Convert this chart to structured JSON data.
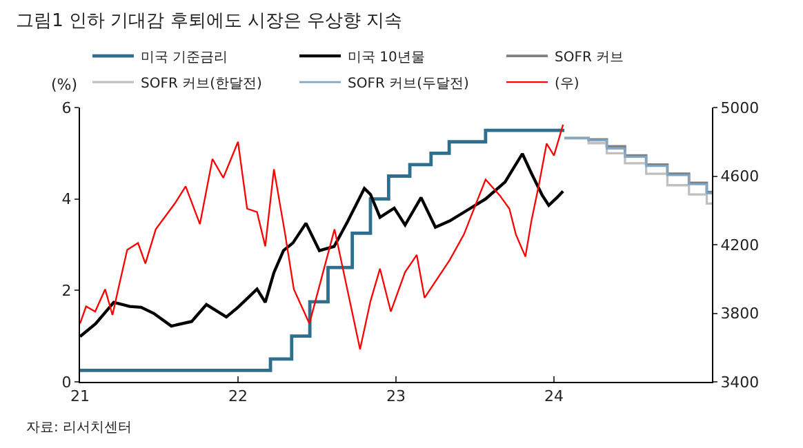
{
  "chart_data": {
    "type": "line",
    "title": "그림1 인하 기대감 후퇴에도 시장은 우상향 지속",
    "ylabel": "(%)",
    "annotations": [
      "자료: 리서치센터"
    ],
    "xlim": [
      "2021-01-01",
      "2024-12-31"
    ],
    "xticks": [
      {
        "value": "2021-01-01",
        "label": "21"
      },
      {
        "value": "2022-01-01",
        "label": "22"
      },
      {
        "value": "2023-01-01",
        "label": "23"
      },
      {
        "value": "2024-01-01",
        "label": "24"
      }
    ],
    "ylim": [
      0,
      6
    ],
    "yticks": [
      0,
      2,
      4,
      6
    ],
    "y2lim": [
      3400,
      5000
    ],
    "y2ticks": [
      3400,
      3800,
      4200,
      4600,
      5000
    ],
    "legend": "top",
    "series": [
      {
        "name": "미국 기준금리",
        "type": "step",
        "color": "#2e6f8e",
        "x": [
          "2021-01-01",
          "2022-03-17",
          "2022-05-05",
          "2022-06-16",
          "2022-07-28",
          "2022-09-22",
          "2022-11-03",
          "2022-12-15",
          "2023-02-02",
          "2023-03-23",
          "2023-05-04",
          "2023-07-27",
          "2024-01-25"
        ],
        "values": [
          0.25,
          0.5,
          1.0,
          1.75,
          2.5,
          3.25,
          4.0,
          4.5,
          4.75,
          5.0,
          5.25,
          5.5,
          5.5
        ]
      },
      {
        "name": "미국 10년물",
        "color": "#000000",
        "x": [
          "2021-01-01",
          "2021-02-06",
          "2021-03-20",
          "2021-04-26",
          "2021-05-22",
          "2021-06-20",
          "2021-07-31",
          "2021-09-16",
          "2021-10-20",
          "2021-12-05",
          "2022-01-01",
          "2022-02-14",
          "2022-03-05",
          "2022-03-25",
          "2022-04-16",
          "2022-05-08",
          "2022-06-07",
          "2022-07-08",
          "2022-08-11",
          "2022-09-12",
          "2022-10-20",
          "2022-11-03",
          "2022-11-25",
          "2022-12-28",
          "2023-01-22",
          "2023-02-28",
          "2023-04-02",
          "2023-05-05",
          "2023-06-14",
          "2023-07-27",
          "2023-09-10",
          "2023-10-20",
          "2023-11-10",
          "2023-12-05",
          "2023-12-20",
          "2024-01-08",
          "2024-01-22"
        ],
        "values": [
          0.99,
          1.27,
          1.74,
          1.65,
          1.63,
          1.5,
          1.22,
          1.32,
          1.69,
          1.42,
          1.63,
          2.03,
          1.74,
          2.39,
          2.87,
          3.04,
          3.47,
          2.87,
          2.96,
          3.52,
          4.23,
          4.1,
          3.6,
          3.8,
          3.43,
          4.03,
          3.38,
          3.52,
          3.75,
          4.0,
          4.37,
          4.99,
          4.56,
          4.08,
          3.86,
          4.03,
          4.17
        ]
      },
      {
        "name": "SOFR 커브",
        "type": "step",
        "color": "#808080",
        "x": [
          "2024-01-25",
          "2024-03-21",
          "2024-05-02",
          "2024-06-13",
          "2024-08-01",
          "2024-09-19",
          "2024-11-08",
          "2024-12-19",
          "2024-12-31"
        ],
        "values": [
          5.33,
          5.3,
          5.15,
          4.95,
          4.75,
          4.55,
          4.35,
          4.15,
          4.15
        ]
      },
      {
        "name": "SOFR 커브(한달전)",
        "type": "step",
        "color": "#c0c0c0",
        "x": [
          "2024-01-25",
          "2024-03-21",
          "2024-05-02",
          "2024-06-13",
          "2024-08-01",
          "2024-09-19",
          "2024-11-08",
          "2024-12-19",
          "2024-12-31"
        ],
        "values": [
          5.33,
          5.22,
          5.0,
          4.78,
          4.55,
          4.3,
          4.1,
          3.9,
          3.9
        ]
      },
      {
        "name": "SOFR 커브(두달전)",
        "type": "step",
        "color": "#7fa7c8",
        "x": [
          "2024-01-25",
          "2024-03-21",
          "2024-05-02",
          "2024-06-13",
          "2024-08-01",
          "2024-09-19",
          "2024-11-08",
          "2024-12-19",
          "2024-12-31"
        ],
        "values": [
          5.33,
          5.28,
          5.1,
          4.92,
          4.72,
          4.52,
          4.32,
          4.12,
          4.12
        ]
      },
      {
        "name": "(우)",
        "axis": "y2",
        "color": "#ff0000",
        "x": [
          "2021-01-01",
          "2021-01-15",
          "2021-02-05",
          "2021-02-28",
          "2021-03-17",
          "2021-04-01",
          "2021-04-20",
          "2021-05-15",
          "2021-06-01",
          "2021-06-25",
          "2021-08-08",
          "2021-09-02",
          "2021-10-05",
          "2021-11-03",
          "2021-11-28",
          "2022-01-01",
          "2022-01-22",
          "2022-02-14",
          "2022-03-05",
          "2022-03-25",
          "2022-04-20",
          "2022-05-10",
          "2022-06-15",
          "2022-08-12",
          "2022-10-10",
          "2022-11-03",
          "2022-11-25",
          "2022-12-20",
          "2023-01-22",
          "2023-02-18",
          "2023-03-08",
          "2023-05-05",
          "2023-06-07",
          "2023-07-05",
          "2023-07-27",
          "2023-08-28",
          "2023-09-20",
          "2023-10-05",
          "2023-10-27",
          "2023-11-10",
          "2023-11-28",
          "2023-12-15",
          "2024-01-01",
          "2024-01-22"
        ],
        "values": [
          3740,
          3840,
          3810,
          3940,
          3790,
          3960,
          4170,
          4210,
          4090,
          4290,
          4440,
          4540,
          4320,
          4700,
          4590,
          4800,
          4410,
          4390,
          4190,
          4640,
          4260,
          3940,
          3740,
          4290,
          3590,
          3870,
          4060,
          3810,
          4040,
          4140,
          3890,
          4110,
          4260,
          4440,
          4580,
          4490,
          4410,
          4260,
          4130,
          4340,
          4560,
          4790,
          4720,
          4900
        ]
      }
    ]
  }
}
